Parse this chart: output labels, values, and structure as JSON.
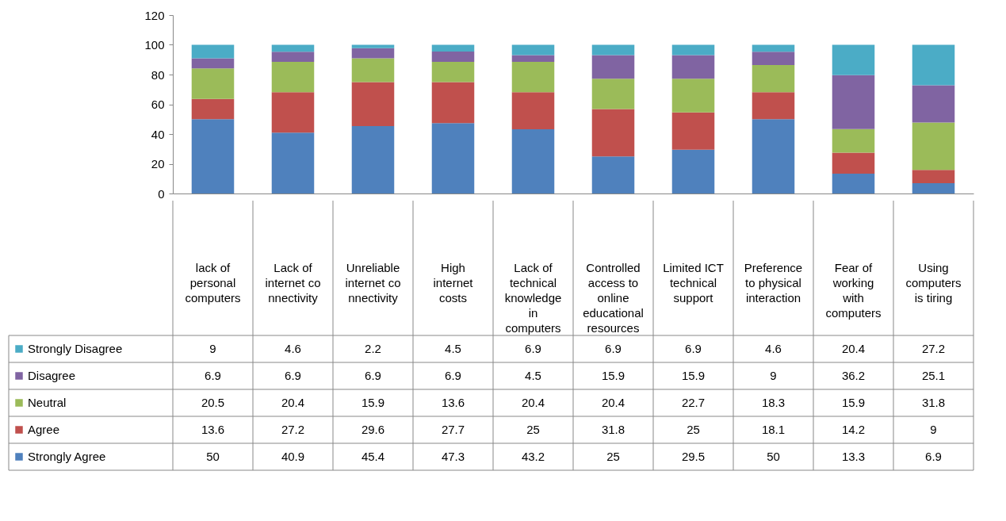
{
  "chart_data": {
    "type": "bar",
    "stacked": true,
    "data_labels": true,
    "legend": "bottom",
    "categories": [
      "lack of personal computers",
      "Lack of internet connectivity",
      "Unreliable internet connectivity",
      "High internet costs",
      "Lack of technical knowledge in computers",
      "Controlled access to online educational resources",
      "Limited ICT technical support",
      "Preference to physical interaction",
      "Fear of working with computers",
      "Using computers is tiring"
    ],
    "series": [
      {
        "name": "Strongly Agree",
        "color": "#4f81bd",
        "values": [
          50,
          40.9,
          45.4,
          47.3,
          43.2,
          25,
          29.5,
          50,
          13.3,
          6.9
        ]
      },
      {
        "name": "Agree",
        "color": "#c0504d",
        "values": [
          13.6,
          27.2,
          29.6,
          27.7,
          25,
          31.8,
          25,
          18.1,
          14.2,
          9
        ]
      },
      {
        "name": "Neutral",
        "color": "#9bbb59",
        "values": [
          20.5,
          20.4,
          15.9,
          13.6,
          20.4,
          20.4,
          22.7,
          18.3,
          15.9,
          31.8
        ]
      },
      {
        "name": "Disagree",
        "color": "#8064a2",
        "values": [
          6.9,
          6.9,
          6.9,
          6.9,
          4.5,
          15.9,
          15.9,
          9,
          36.2,
          25.1
        ]
      },
      {
        "name": "Strongly Disagree",
        "color": "#4bacc6",
        "values": [
          9,
          4.6,
          2.2,
          4.5,
          6.9,
          6.9,
          6.9,
          4.6,
          20.4,
          27.2
        ]
      }
    ],
    "ylim": [
      0,
      120
    ],
    "yticks": [
      0,
      20,
      40,
      60,
      80,
      100,
      120
    ]
  }
}
